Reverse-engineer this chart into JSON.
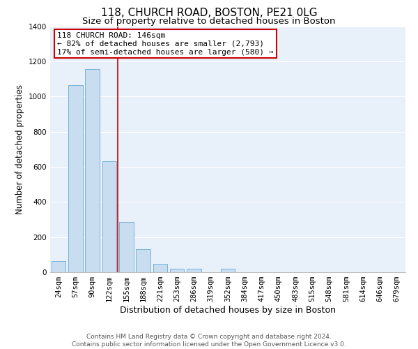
{
  "title": "118, CHURCH ROAD, BOSTON, PE21 0LG",
  "subtitle": "Size of property relative to detached houses in Boston",
  "xlabel": "Distribution of detached houses by size in Boston",
  "ylabel": "Number of detached properties",
  "bar_labels": [
    "24sqm",
    "57sqm",
    "90sqm",
    "122sqm",
    "155sqm",
    "188sqm",
    "221sqm",
    "253sqm",
    "286sqm",
    "319sqm",
    "352sqm",
    "384sqm",
    "417sqm",
    "450sqm",
    "483sqm",
    "515sqm",
    "548sqm",
    "581sqm",
    "614sqm",
    "646sqm",
    "679sqm"
  ],
  "bar_values": [
    65,
    1065,
    1155,
    630,
    285,
    130,
    48,
    20,
    20,
    0,
    20,
    0,
    0,
    0,
    0,
    0,
    0,
    0,
    0,
    0,
    0
  ],
  "bar_color": "#c9ddf1",
  "bar_edge_color": "#6aaad4",
  "background_color": "#e8f0fa",
  "grid_color": "#ffffff",
  "vline_color": "#cc0000",
  "ylim": [
    0,
    1400
  ],
  "yticks": [
    0,
    200,
    400,
    600,
    800,
    1000,
    1200,
    1400
  ],
  "annotation_title": "118 CHURCH ROAD: 146sqm",
  "annotation_line1": "← 82% of detached houses are smaller (2,793)",
  "annotation_line2": "17% of semi-detached houses are larger (580) →",
  "annotation_box_color": "#ffffff",
  "annotation_box_edge": "#cc0000",
  "footer_line1": "Contains HM Land Registry data © Crown copyright and database right 2024.",
  "footer_line2": "Contains public sector information licensed under the Open Government Licence v3.0.",
  "title_fontsize": 11,
  "subtitle_fontsize": 9.5,
  "xlabel_fontsize": 9,
  "ylabel_fontsize": 8.5,
  "tick_fontsize": 7.5,
  "annotation_fontsize": 8,
  "footer_fontsize": 6.5
}
